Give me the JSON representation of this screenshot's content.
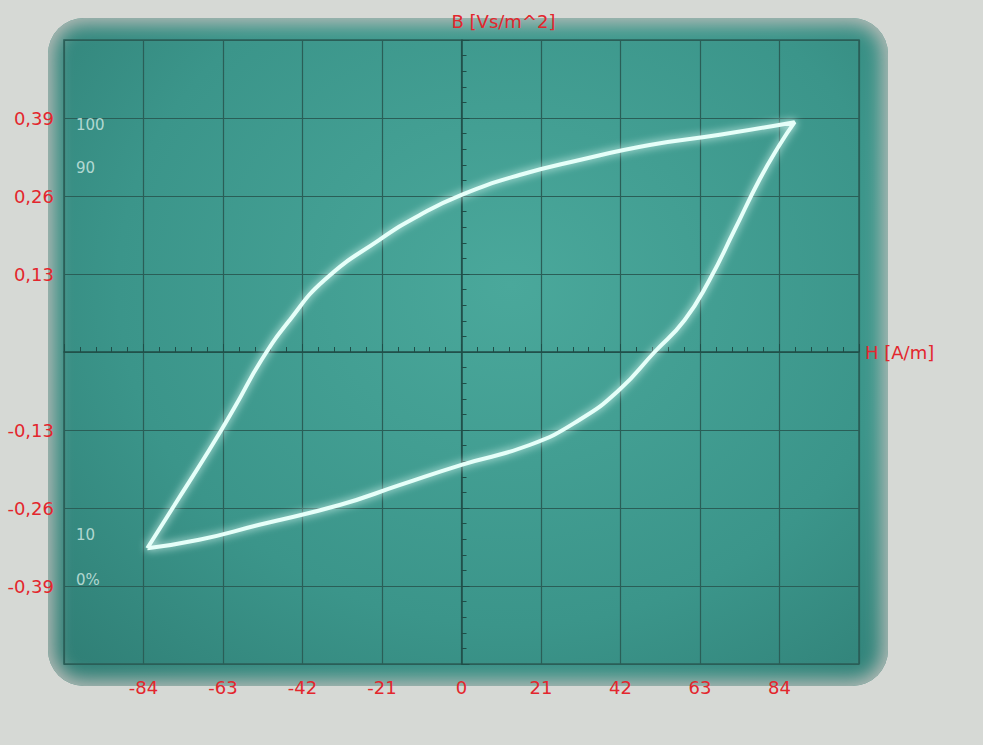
{
  "chart_data": {
    "type": "line",
    "x_label": "H [A/m]",
    "y_label": "B [Vs/m^2]",
    "xlim": [
      -105,
      105
    ],
    "xticks": [
      -84,
      -63,
      -42,
      -21,
      0,
      21,
      42,
      63,
      84
    ],
    "ylim": [
      -0.52,
      0.52
    ],
    "yticks": [
      {
        "value": -0.39,
        "label": "-0,39"
      },
      {
        "value": -0.26,
        "label": "-0,26"
      },
      {
        "value": -0.13,
        "label": "-0,13"
      },
      {
        "value": 0.13,
        "label": "0,13"
      },
      {
        "value": 0.26,
        "label": "0,26"
      },
      {
        "value": 0.39,
        "label": "0,39"
      }
    ],
    "grid": true,
    "color": "#e6fff9",
    "x": [
      -83,
      -75.8,
      -66.6,
      -60,
      -52.8,
      -45.4,
      -36.2,
      -21.7,
      -11.1,
      0,
      15.3,
      31.2,
      49.7,
      68.2,
      88,
      84,
      78.7,
      72.1,
      65.5,
      58.9,
      51,
      41.7,
      31.2,
      18,
      0,
      -16.4,
      -32.2,
      -53.4,
      -69.3,
      -83
    ],
    "values": [
      -0.327,
      -0.255,
      -0.163,
      -0.093,
      -0.013,
      0.053,
      0.12,
      0.187,
      0.228,
      0.262,
      0.295,
      0.32,
      0.345,
      0.362,
      0.383,
      0.345,
      0.287,
      0.203,
      0.12,
      0.053,
      0,
      -0.063,
      -0.113,
      -0.155,
      -0.188,
      -0.222,
      -0.255,
      -0.288,
      -0.313,
      -0.327
    ],
    "annotations": [
      {
        "text": "100",
        "y": 0.378
      },
      {
        "text": "90",
        "y": 0.307
      },
      {
        "text": "10",
        "y": -0.305
      },
      {
        "text": "0%",
        "y": -0.38
      }
    ]
  }
}
